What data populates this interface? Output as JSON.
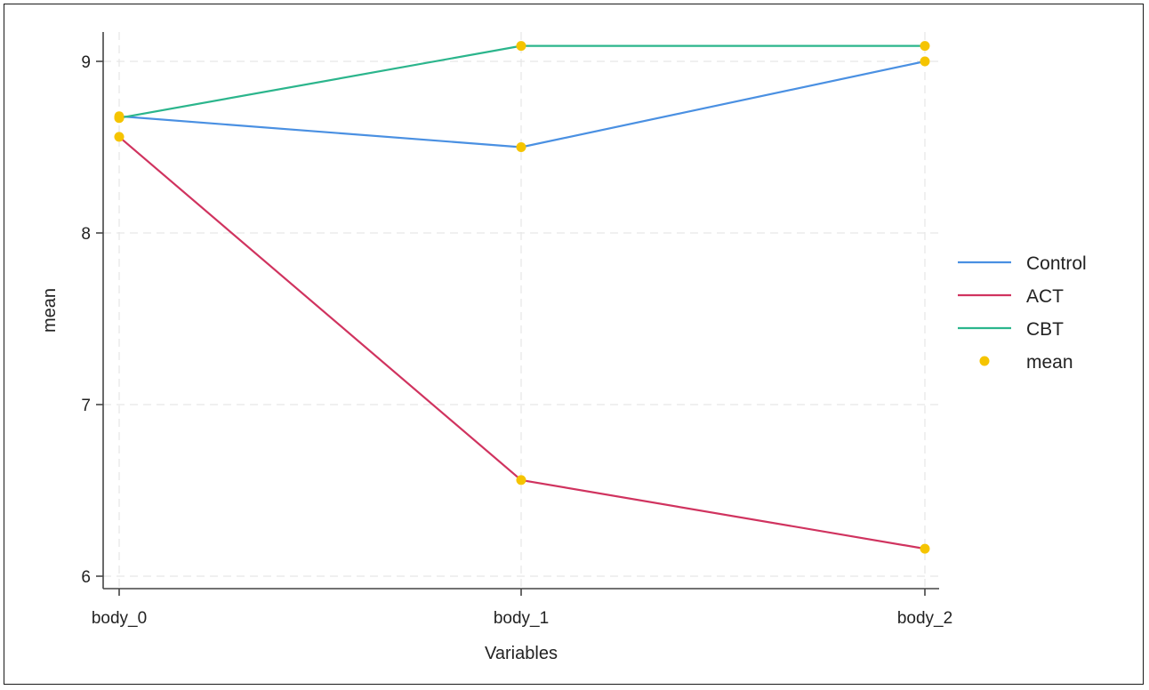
{
  "chart_data": {
    "type": "line",
    "categories": [
      "body_0",
      "body_1",
      "body_2"
    ],
    "series": [
      {
        "name": "Control",
        "values": [
          8.68,
          8.5,
          9.0
        ],
        "color": "#4a90e2"
      },
      {
        "name": "ACT",
        "values": [
          8.56,
          6.56,
          6.16
        ],
        "color": "#d0335f"
      },
      {
        "name": "CBT",
        "values": [
          8.67,
          9.09,
          9.09
        ],
        "color": "#2bb58c"
      }
    ],
    "marker_series": {
      "name": "mean",
      "color": "#f5c400"
    },
    "xlabel": "Variables",
    "ylabel": "mean",
    "ylim": [
      5.9,
      9.2
    ],
    "yticks": [
      6,
      7,
      8,
      9
    ],
    "grid": true,
    "legend_position": "right"
  }
}
